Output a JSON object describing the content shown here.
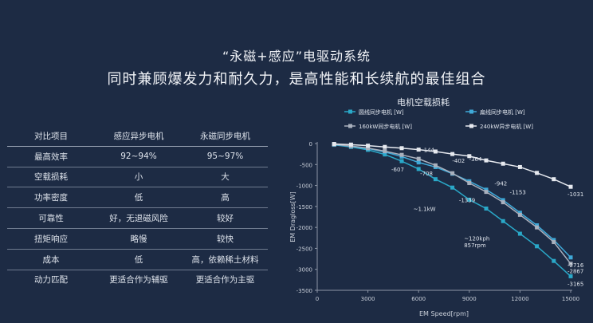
{
  "header": {
    "title": "“永磁+感应”电驱动系统",
    "subtitle": "同时兼顾爆发力和耐久力，是高性能和长续航的最佳组合"
  },
  "table": {
    "headers": [
      "对比项目",
      "感应异步电机",
      "永磁同步电机"
    ],
    "rows": [
      [
        "最高效率",
        "92~94%",
        "95~97%"
      ],
      [
        "空载损耗",
        "小",
        "大"
      ],
      [
        "功率密度",
        "低",
        "高"
      ],
      [
        "可靠性",
        "好，无退磁风险",
        "较好"
      ],
      [
        "扭矩响应",
        "略慢",
        "较快"
      ],
      [
        "成本",
        "低",
        "高，依赖稀土材料"
      ],
      [
        "动力匹配",
        "更适合作为辅驱",
        "更适合作为主驱"
      ]
    ]
  },
  "chart_data": {
    "type": "line",
    "title": "电机空载损耗",
    "xlabel": "EM Speed[rpm]",
    "ylabel": "EM Dragloss[W]",
    "xlim": [
      0,
      15000
    ],
    "ylim": [
      -3500,
      0
    ],
    "xticks": [
      0,
      3000,
      6000,
      9000,
      12000,
      15000
    ],
    "yticks": [
      0,
      -500,
      -1000,
      -1500,
      -2000,
      -2500,
      -3000,
      -3500
    ],
    "legend_position": "top",
    "series": [
      {
        "name": "圆线同步电机 [W]",
        "color": "#2aa8c8",
        "marker": "square",
        "x": [
          1000,
          2000,
          3000,
          4000,
          5000,
          6000,
          7000,
          8000,
          9000,
          10000,
          11000,
          12000,
          13000,
          14000,
          15000
        ],
        "y": [
          -30,
          -80,
          -150,
          -260,
          -420,
          -607,
          -850,
          -1050,
          -1339,
          -1550,
          -1850,
          -2150,
          -2450,
          -2800,
          -3165
        ]
      },
      {
        "name": "扁线同步电机 [W]",
        "color": "#3fa9d8",
        "marker": "square",
        "x": [
          1000,
          2000,
          3000,
          4000,
          5000,
          6000,
          7000,
          8000,
          9000,
          10000,
          11000,
          12000,
          13000,
          14000,
          15000
        ],
        "y": [
          -25,
          -70,
          -120,
          -200,
          -310,
          -450,
          -560,
          -720,
          -900,
          -1100,
          -1350,
          -1650,
          -1950,
          -2300,
          -2716
        ]
      },
      {
        "name": "160kW同步电机 [W]",
        "color": "#a9b0bd",
        "marker": "square",
        "x": [
          1000,
          2000,
          3000,
          4000,
          5000,
          6000,
          7000,
          8000,
          9000,
          10000,
          11000,
          12000,
          13000,
          14000,
          15000
        ],
        "y": [
          -20,
          -60,
          -110,
          -180,
          -270,
          -364,
          -520,
          -708,
          -942,
          -1153,
          -1400,
          -1700,
          -2000,
          -2350,
          -2867
        ]
      },
      {
        "name": "240kW异步电机 [W]",
        "color": "#e6e9ef",
        "marker": "square",
        "x": [
          1000,
          2000,
          3000,
          4000,
          5000,
          6000,
          7000,
          8000,
          9000,
          10000,
          11000,
          12000,
          13000,
          14000,
          15000
        ],
        "y": [
          -10,
          -25,
          -50,
          -80,
          -110,
          -144,
          -190,
          -250,
          -300,
          -402,
          -480,
          -560,
          -700,
          -850,
          -1031
        ]
      }
    ],
    "annotations": [
      {
        "text": "-144",
        "x": 6000,
        "y": -144
      },
      {
        "text": "-402",
        "x": 7800,
        "y": -402
      },
      {
        "text": "-364",
        "x": 8800,
        "y": -364
      },
      {
        "text": "-942",
        "x": 10300,
        "y": -942
      },
      {
        "text": "-1153",
        "x": 11200,
        "y": -1153
      },
      {
        "text": "-607",
        "x": 4200,
        "y": -607
      },
      {
        "text": "-708",
        "x": 5900,
        "y": -708
      },
      {
        "text": "-1339",
        "x": 8200,
        "y": -1339
      },
      {
        "text": "-1031",
        "x": 15000,
        "y": -1031
      },
      {
        "text": "-2716",
        "x": 15000,
        "y": -2716
      },
      {
        "text": "-2867",
        "x": 15000,
        "y": -2867
      },
      {
        "text": "-3165",
        "x": 15000,
        "y": -3165
      },
      {
        "text": "~1.1kW",
        "x": 5500,
        "y": -1550
      },
      {
        "text": "~120kph",
        "x": 8500,
        "y": -2250
      },
      {
        "text": "857rpm",
        "x": 8500,
        "y": -2420
      }
    ]
  }
}
